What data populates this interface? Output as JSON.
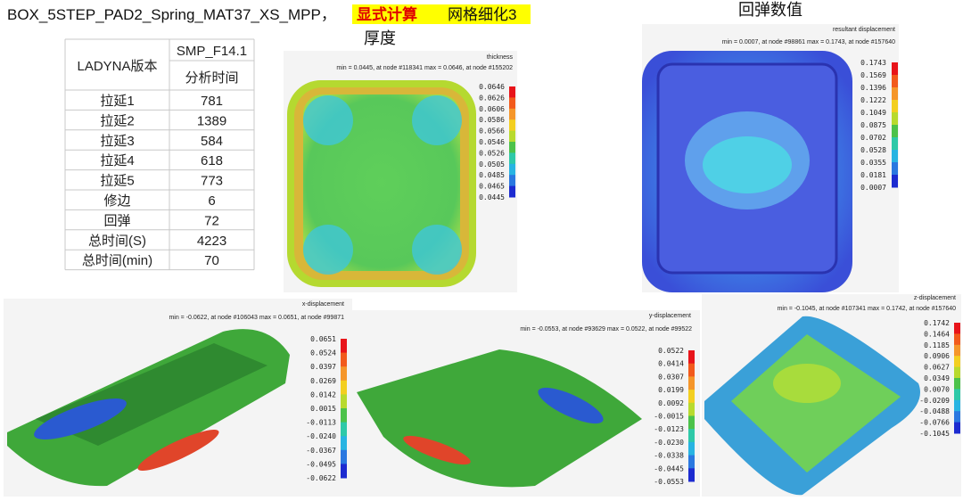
{
  "header": {
    "title": "BOX_5STEP_PAD2_Spring_MAT37_XS_MPP，",
    "highlight_red": "显式计算",
    "highlight_black": "网格细化3"
  },
  "captions": {
    "thickness": "厚度",
    "springback": "回弹数值"
  },
  "table": {
    "header": [
      "LADYNA版本",
      "SMP_F14.1",
      "分析时间"
    ],
    "rows": [
      [
        "拉延1",
        "781"
      ],
      [
        "拉延2",
        "1389"
      ],
      [
        "拉延3",
        "584"
      ],
      [
        "拉延4",
        "618"
      ],
      [
        "拉延5",
        "773"
      ],
      [
        "修边",
        "6"
      ],
      [
        "回弹",
        "72"
      ],
      [
        "总时间(S)",
        "4223"
      ],
      [
        "总时间(min)",
        "70"
      ]
    ]
  },
  "panels": [
    {
      "name": "thickness",
      "stats": "min = 0.0445, at node #118341  max = 0.0646, at node #155202",
      "scale": [
        "0.0646",
        "0.0626",
        "0.0606",
        "0.0586",
        "0.0566",
        "0.0546",
        "0.0526",
        "0.0505",
        "0.0485",
        "0.0465",
        "0.0445"
      ]
    },
    {
      "name": "resultant displacement",
      "stats": "min = 0.0007, at node #98861  max = 0.1743, at node #157640",
      "scale": [
        "0.1743",
        "0.1569",
        "0.1396",
        "0.1222",
        "0.1049",
        "0.0875",
        "0.0702",
        "0.0528",
        "0.0355",
        "0.0181",
        "0.0007"
      ]
    },
    {
      "name": "x-displacement",
      "stats": "min = -0.0622, at node #106043  max = 0.0651, at node #99871",
      "scale": [
        "0.0651",
        "0.0524",
        "0.0397",
        "0.0269",
        "0.0142",
        "0.0015",
        "-0.0113",
        "-0.0240",
        "-0.0367",
        "-0.0495",
        "-0.0622"
      ]
    },
    {
      "name": "y-displacement",
      "stats": "min = -0.0553, at node #93629  max = 0.0522, at node #99522",
      "scale": [
        "0.0522",
        "0.0414",
        "0.0307",
        "0.0199",
        "0.0092",
        "-0.0015",
        "-0.0123",
        "-0.0230",
        "-0.0338",
        "-0.0445",
        "-0.0553"
      ]
    },
    {
      "name": "z-displacement",
      "stats": "min = -0.1045, at node #107341  max = 0.1742, at node #157640",
      "scale": [
        "0.1742",
        "0.1464",
        "0.1185",
        "0.0906",
        "0.0627",
        "0.0349",
        "0.0070",
        "-0.0209",
        "-0.0488",
        "-0.0766",
        "-0.1045"
      ]
    }
  ]
}
